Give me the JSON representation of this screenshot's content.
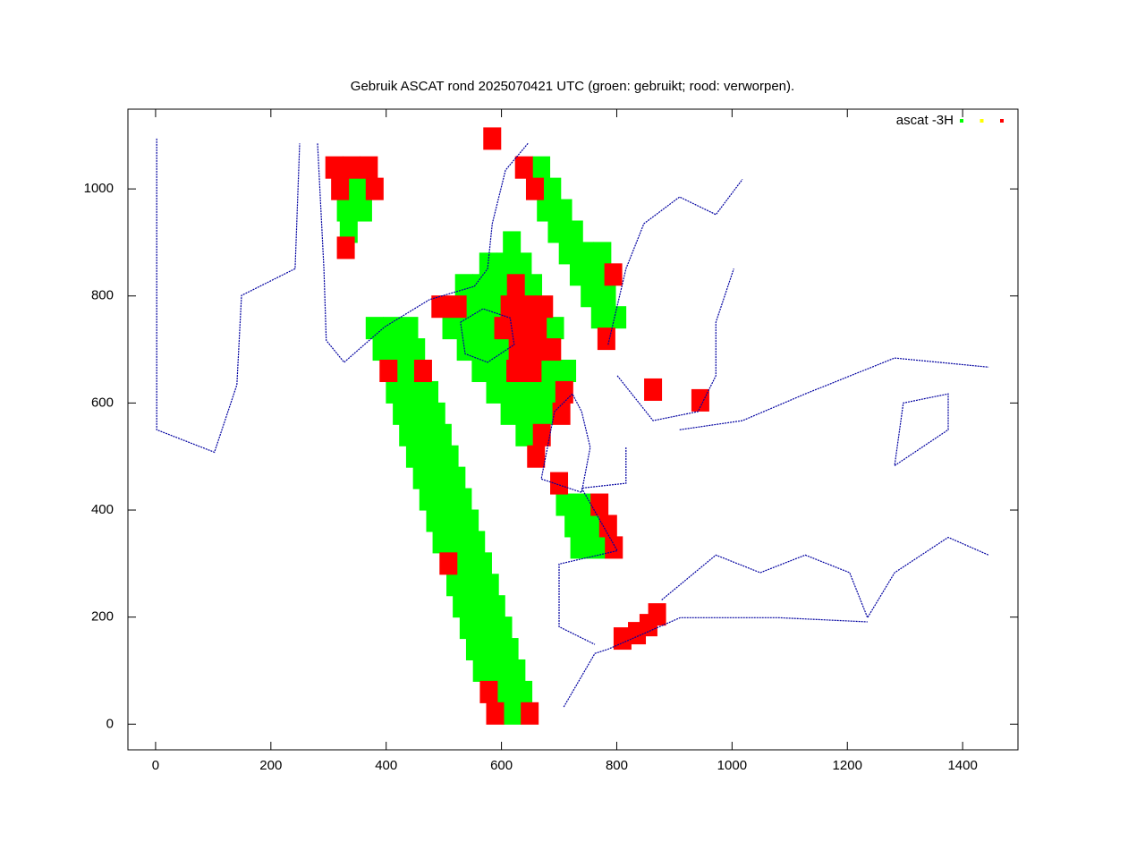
{
  "chart_data": {
    "type": "scatter",
    "title": "Gebruik ASCAT rond 2025070421 UTC (groen: gebruikt; rood: verworpen).",
    "xlim": [
      -48,
      1496
    ],
    "ylim": [
      -48,
      1149
    ],
    "xticks": [
      0,
      200,
      400,
      600,
      800,
      1000,
      1200,
      1400
    ],
    "yticks": [
      0,
      200,
      400,
      600,
      800,
      1000
    ],
    "legend": "top-right",
    "series": [
      {
        "name": "ascat -3H",
        "color": "#00ff00",
        "x": [
          619,
          608,
          638,
          566,
          596,
          626,
          554,
          584,
          614,
          543,
          573,
          603,
          531,
          561,
          591,
          520,
          550,
          580,
          538,
          568,
          496,
          526,
          556,
          485,
          515,
          545,
          473,
          503,
          533,
          462,
          492,
          522,
          450,
          480,
          510,
          438,
          468,
          498,
          427,
          457,
          487,
          415,
          445,
          475,
          434,
          392,
          422,
          452,
          380,
          410,
          440,
          640,
          614,
          644,
          674,
          589,
          619,
          649,
          679,
          564,
          594,
          684,
          714,
          538,
          568,
          598,
          513,
          543,
          573,
          693,
          554,
          584,
          535,
          565,
          595,
          655,
          577,
          607,
          637,
          618,
          771,
          801,
          753,
          783,
          734,
          764,
          715,
          745,
          775,
          696,
          726,
          677,
          707,
          688,
          669,
          735,
          765,
          725,
          755,
          710,
          740,
          350,
          330,
          360,
          335
        ],
        "y": [
          20,
          60,
          60,
          100,
          100,
          100,
          140,
          140,
          140,
          180,
          180,
          180,
          220,
          220,
          220,
          260,
          260,
          260,
          300,
          300,
          340,
          340,
          340,
          380,
          380,
          380,
          420,
          420,
          420,
          460,
          460,
          460,
          500,
          500,
          500,
          540,
          540,
          540,
          580,
          580,
          580,
          620,
          620,
          620,
          660,
          700,
          700,
          700,
          740,
          740,
          740,
          540,
          580,
          580,
          580,
          620,
          620,
          620,
          620,
          660,
          660,
          660,
          660,
          700,
          700,
          700,
          740,
          740,
          740,
          740,
          780,
          780,
          820,
          820,
          820,
          820,
          860,
          860,
          860,
          900,
          760,
          760,
          800,
          800,
          840,
          840,
          880,
          880,
          880,
          920,
          920,
          960,
          960,
          1000,
          1040,
          330,
          330,
          370,
          370,
          410,
          410,
          1000,
          960,
          960,
          920
        ]
      },
      {
        "color": "#ffff00",
        "x": [],
        "y": []
      },
      {
        "color": "#ff0000",
        "x": [
          589,
          649,
          578,
          508,
          404,
          464,
          660,
          670,
          704,
          709,
          624,
          654,
          628,
          658,
          688,
          603,
          633,
          663,
          494,
          524,
          614,
          644,
          674,
          625,
          782,
          794,
          658,
          639,
          795,
          785,
          770,
          700,
          810,
          835,
          855,
          870,
          310,
          340,
          370,
          320,
          380,
          330,
          584,
          863,
          945
        ],
        "y": [
          20,
          20,
          60,
          300,
          660,
          660,
          500,
          540,
          580,
          620,
          660,
          660,
          700,
          700,
          700,
          740,
          740,
          740,
          780,
          780,
          780,
          780,
          780,
          820,
          720,
          840,
          1000,
          1040,
          330,
          370,
          410,
          450,
          160,
          170,
          185,
          205,
          1040,
          1040,
          1040,
          1000,
          1000,
          890,
          1094,
          625,
          605
        ]
      },
      {
        "color": "#0000a0",
        "lines": true,
        "x": [
          281,
          292,
          296,
          327,
          397,
          475,
          553,
          576,
          584,
          607,
          646,
          null,
          529,
          568,
          615,
          622,
          576,
          537,
          529,
          null,
          2,
          2,
          102,
          141,
          149,
          242,
          250,
          null,
          785,
          816,
          847,
          909,
          972,
          1018,
          null,
          801,
          863,
          941,
          972,
          972,
          1003,
          null,
          723,
          692,
          669,
          739,
          754,
          739,
          723,
          null,
          816,
          816,
          739,
          801,
          700,
          700,
          762,
          null,
          878,
          972,
          1049,
          1127,
          1204,
          1235,
          1282,
          1375,
          1445,
          null,
          708,
          762,
          785,
          910,
          1080,
          1235,
          null,
          909,
          1018,
          1127,
          1282,
          1445,
          null,
          1282,
          1375,
          1375,
          1297,
          1282
        ],
        "y": [
          1085,
          851,
          717,
          676,
          742,
          793,
          818,
          851,
          935,
          1035,
          1085,
          null,
          751,
          776,
          759,
          709,
          676,
          692,
          751,
          null,
          1094,
          550,
          508,
          634,
          801,
          851,
          1085,
          null,
          709,
          851,
          935,
          985,
          952,
          1018,
          null,
          651,
          567,
          584,
          651,
          751,
          851,
          null,
          617,
          584,
          458,
          433,
          517,
          584,
          617,
          null,
          517,
          450,
          441,
          324,
          299,
          182,
          149,
          null,
          232,
          316,
          283,
          316,
          283,
          199,
          283,
          349,
          316,
          null,
          32,
          132,
          140,
          199,
          199,
          191,
          null,
          550,
          567,
          617,
          684,
          667,
          null,
          483,
          550,
          617,
          600,
          483
        ]
      }
    ]
  }
}
